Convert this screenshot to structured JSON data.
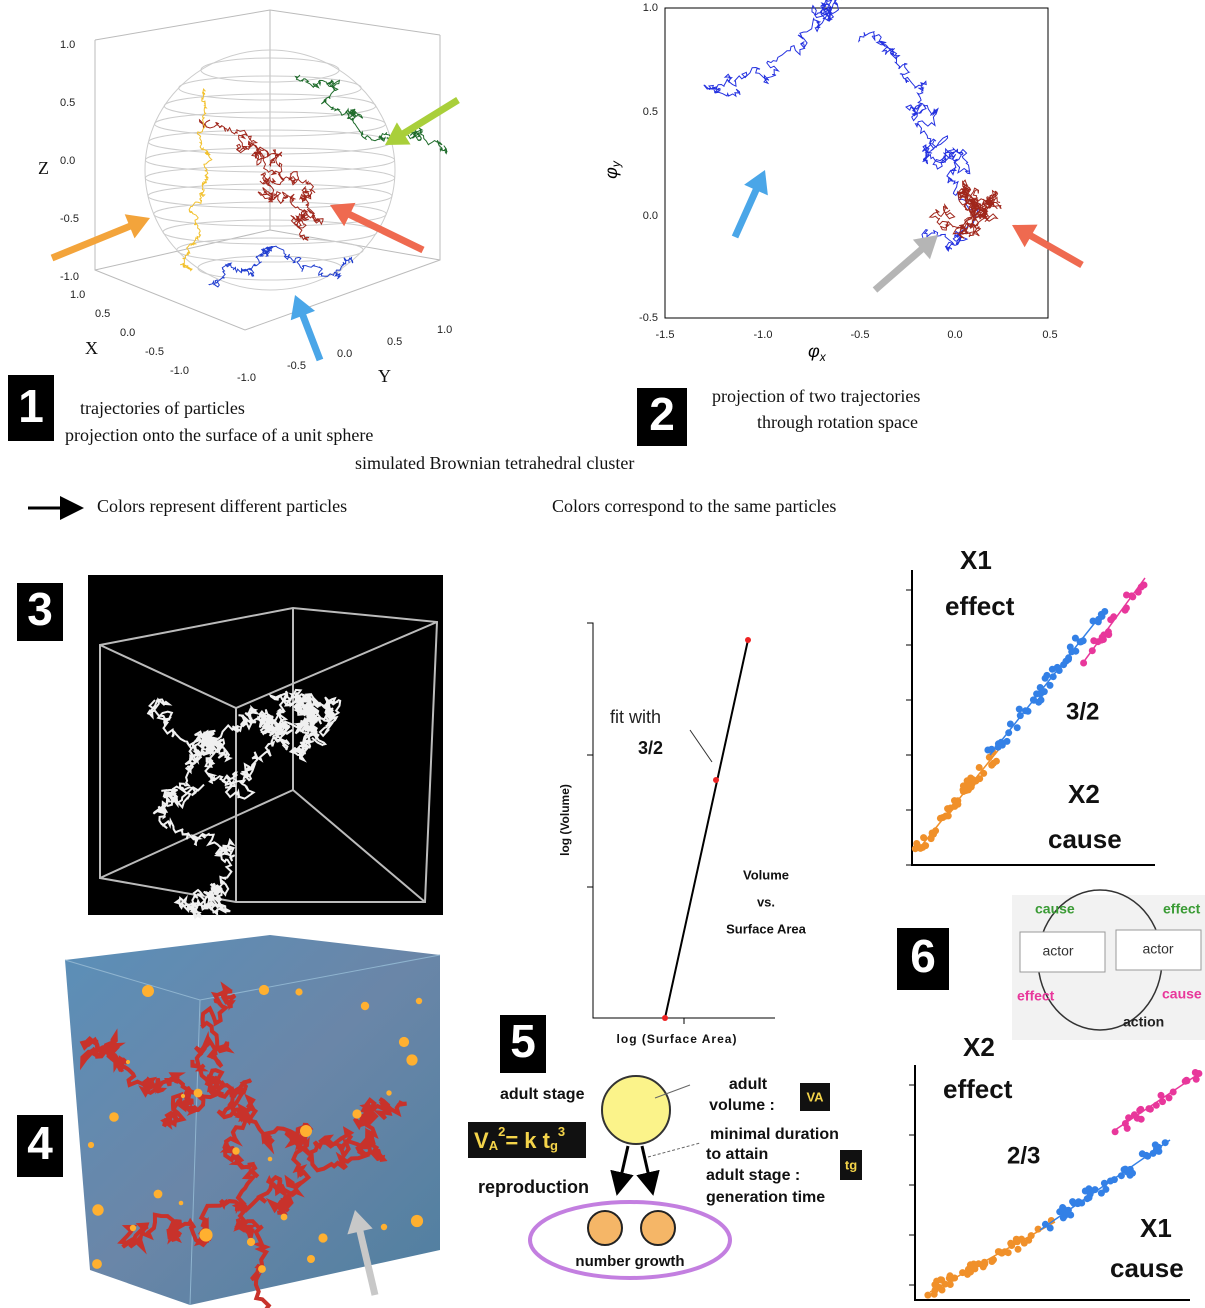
{
  "panel1": {
    "number": "1",
    "z_label": "Z",
    "x_label": "X",
    "y_label": "Y",
    "z_ticks": [
      "1.0",
      "0.5",
      "0.0",
      "-0.5",
      "-1.0"
    ],
    "x_ticks": [
      "1.0",
      "0.5",
      "0.0",
      "-0.5",
      "-1.0"
    ],
    "y_ticks": [
      "-1.0",
      "-0.5",
      "0.0",
      "0.5",
      "1.0"
    ],
    "caption": [
      "trajectories of particles",
      "projection  onto the surface of a unit sphere"
    ]
  },
  "shared_caption": "simulated Brownian tetrahedral cluster",
  "legend_left": "Colors represent different particles",
  "legend_right": "Colors  correspond to the same particles",
  "panel2": {
    "number": "2",
    "x_label": {
      "symbol": "φ",
      "subscript": "x"
    },
    "y_label": {
      "symbol": "φ",
      "subscript": "y"
    },
    "y_ticks": [
      "1.0",
      "0.5",
      "0.0",
      "-0.5"
    ],
    "x_ticks": [
      "-1.5",
      "-1.0",
      "-0.5",
      "0.0",
      "0.5"
    ],
    "caption": [
      "projection of two trajectories",
      "through rotation space"
    ]
  },
  "panel3": {
    "number": "3"
  },
  "panel4": {
    "number": "4"
  },
  "panel5": {
    "number": "5",
    "y_label": "log (Volume)",
    "x_label": "log (Surface Area)",
    "fit": [
      "fit with",
      "3/2"
    ],
    "legend": [
      "Volume",
      "vs.",
      "Surface Area"
    ],
    "diagram": {
      "adult_stage": "adult stage",
      "formula": [
        "V",
        "A",
        "2",
        "= k t",
        "g",
        "3"
      ],
      "volume": [
        "adult",
        "volume  :"
      ],
      "volume_symbol": "VA",
      "duration": [
        "minimal duration",
        "to attain",
        "adult stage :"
      ],
      "duration_symbol": "tg",
      "generation": "generation time",
      "reproduction": "reproduction",
      "growth": "number growth"
    }
  },
  "panel6": {
    "number": "6",
    "top": {
      "y_name": "X1",
      "y_role": "effect",
      "slope": "3/2",
      "x_name": "X2",
      "x_role": "cause"
    },
    "cycle": {
      "cause_left": "cause",
      "effect_right": "effect",
      "actor_left": "actor",
      "actor_right": "actor",
      "effect_left": "effect",
      "cause_right": "cause",
      "action": "action"
    },
    "bottom": {
      "y_name": "X2",
      "y_role": "effect",
      "slope": "2/3",
      "x_name": "X1",
      "x_role": "cause"
    }
  }
}
